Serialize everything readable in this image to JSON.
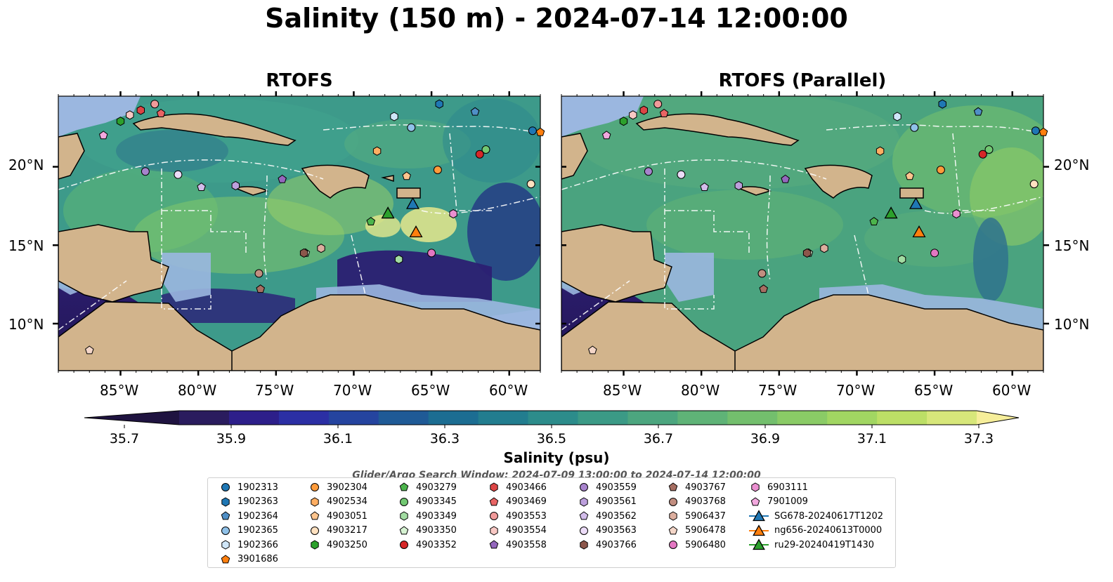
{
  "figure": {
    "title": "Salinity (150 m) - 2024-07-14 12:00:00",
    "colors": {
      "land": "#d2b48c",
      "shallow_water": "#9bb7e0",
      "coastline": "#000000",
      "eez_lines": "#ffffff"
    }
  },
  "panels": [
    {
      "title": "RTOFS",
      "model": "rtofs"
    },
    {
      "title": "RTOFS (Parallel)",
      "model": "rtofs_parallel"
    }
  ],
  "axes": {
    "lat_ticks": [
      "20°N",
      "15°N",
      "10°N"
    ],
    "lon_ticks": [
      "85°W",
      "80°W",
      "75°W",
      "70°W",
      "65°W",
      "60°W"
    ],
    "extent": {
      "lon": [
        -89,
        -58
      ],
      "lat": [
        7,
        24.5
      ]
    }
  },
  "colorbar": {
    "label": "Salinity (psu)",
    "ticks": [
      "35.7",
      "35.9",
      "36.1",
      "36.3",
      "36.5",
      "36.7",
      "36.9",
      "37.1",
      "37.3"
    ],
    "range": [
      35.7,
      37.4
    ],
    "colormap": "haline",
    "extend": "both"
  },
  "search_window": "Glider/Argo Search Window: 2024-07-09 13:00:00 to 2024-07-14 12:00:00",
  "legend": [
    {
      "label": "1902313",
      "marker": "circle",
      "color": "#1f77b4"
    },
    {
      "label": "1902363",
      "marker": "hexagon",
      "color": "#1f77b4"
    },
    {
      "label": "1902364",
      "marker": "pentagon",
      "color": "#4f8fc6"
    },
    {
      "label": "1902365",
      "marker": "circle",
      "color": "#8fc1e8"
    },
    {
      "label": "1902366",
      "marker": "hexagon",
      "color": "#cfe6f8"
    },
    {
      "label": "3901686",
      "marker": "pentagon",
      "color": "#ff7f0e"
    },
    {
      "label": "3902304",
      "marker": "circle",
      "color": "#ff9b3a"
    },
    {
      "label": "4902534",
      "marker": "hexagon",
      "color": "#ffae62"
    },
    {
      "label": "4903051",
      "marker": "pentagon",
      "color": "#ffc58e"
    },
    {
      "label": "4903217",
      "marker": "circle",
      "color": "#ffe1c0"
    },
    {
      "label": "4903250",
      "marker": "hexagon",
      "color": "#2ca02c"
    },
    {
      "label": "4903279",
      "marker": "pentagon",
      "color": "#4cb44c"
    },
    {
      "label": "4903345",
      "marker": "circle",
      "color": "#72c872"
    },
    {
      "label": "4903349",
      "marker": "hexagon",
      "color": "#a2dca2"
    },
    {
      "label": "4903350",
      "marker": "pentagon",
      "color": "#d6f2d2"
    },
    {
      "label": "4903352",
      "marker": "circle",
      "color": "#d62728"
    },
    {
      "label": "4903466",
      "marker": "hexagon",
      "color": "#dc4545"
    },
    {
      "label": "4903469",
      "marker": "pentagon",
      "color": "#e86464"
    },
    {
      "label": "4903553",
      "marker": "circle",
      "color": "#f09a9a"
    },
    {
      "label": "4903554",
      "marker": "hexagon",
      "color": "#f8c8c4"
    },
    {
      "label": "4903558",
      "marker": "pentagon",
      "color": "#9467bd"
    },
    {
      "label": "4903559",
      "marker": "circle",
      "color": "#a783cc"
    },
    {
      "label": "4903561",
      "marker": "hexagon",
      "color": "#bc9fdc"
    },
    {
      "label": "4903562",
      "marker": "pentagon",
      "color": "#d2bcea"
    },
    {
      "label": "4903563",
      "marker": "circle",
      "color": "#ecdcf8"
    },
    {
      "label": "4903766",
      "marker": "hexagon",
      "color": "#8c564b"
    },
    {
      "label": "4903767",
      "marker": "pentagon",
      "color": "#a66e62"
    },
    {
      "label": "4903768",
      "marker": "circle",
      "color": "#c28e80"
    },
    {
      "label": "5906437",
      "marker": "hexagon",
      "color": "#dcae9e"
    },
    {
      "label": "5906478",
      "marker": "pentagon",
      "color": "#f4d6c8"
    },
    {
      "label": "5906480",
      "marker": "circle",
      "color": "#e377c2"
    },
    {
      "label": "6903111",
      "marker": "hexagon",
      "color": "#ea8fd0"
    },
    {
      "label": "7901009",
      "marker": "pentagon",
      "color": "#f2a8de"
    },
    {
      "label": "SG678-20240617T1202",
      "marker": "triangle-line",
      "color": "#1f77b4"
    },
    {
      "label": "ng656-20240613T0000",
      "marker": "triangle-line",
      "color": "#ff7f0e"
    },
    {
      "label": "ru29-20240419T1430",
      "marker": "triangle-line",
      "color": "#2ca02c"
    }
  ],
  "platforms": [
    {
      "id": "1902313",
      "lon": -58.5,
      "lat": 22.3
    },
    {
      "id": "1902363",
      "lon": -64.5,
      "lat": 24.0
    },
    {
      "id": "1902364",
      "lon": -62.2,
      "lat": 23.5
    },
    {
      "id": "1902365",
      "lon": -66.3,
      "lat": 22.5
    },
    {
      "id": "1902366",
      "lon": -67.4,
      "lat": 23.2
    },
    {
      "id": "3901686",
      "lon": -58.0,
      "lat": 22.2
    },
    {
      "id": "3902304",
      "lon": -64.6,
      "lat": 19.8
    },
    {
      "id": "4902534",
      "lon": -68.5,
      "lat": 21.0
    },
    {
      "id": "4903051",
      "lon": -66.6,
      "lat": 19.4
    },
    {
      "id": "4903217",
      "lon": -58.6,
      "lat": 18.9
    },
    {
      "id": "4903250",
      "lon": -85.0,
      "lat": 22.9
    },
    {
      "id": "4903279",
      "lon": -68.9,
      "lat": 16.5
    },
    {
      "id": "4903345",
      "lon": -61.5,
      "lat": 21.1
    },
    {
      "id": "4903349",
      "lon": -67.1,
      "lat": 14.1
    },
    {
      "id": "4903350",
      "lon": -73.1,
      "lat": 14.5
    },
    {
      "id": "4903352",
      "lon": -61.9,
      "lat": 20.8
    },
    {
      "id": "4903466",
      "lon": -83.7,
      "lat": 23.6
    },
    {
      "id": "4903469",
      "lon": -82.4,
      "lat": 23.4
    },
    {
      "id": "4903553",
      "lon": -82.8,
      "lat": 24.0
    },
    {
      "id": "4903554",
      "lon": -84.4,
      "lat": 23.3
    },
    {
      "id": "4903558",
      "lon": -74.6,
      "lat": 19.2
    },
    {
      "id": "4903559",
      "lon": -83.4,
      "lat": 19.7
    },
    {
      "id": "4903561",
      "lon": -77.6,
      "lat": 18.8
    },
    {
      "id": "4903562",
      "lon": -79.8,
      "lat": 18.7
    },
    {
      "id": "4903563",
      "lon": -81.3,
      "lat": 19.5
    },
    {
      "id": "4903766",
      "lon": -73.2,
      "lat": 14.5
    },
    {
      "id": "4903767",
      "lon": -76.0,
      "lat": 12.2
    },
    {
      "id": "4903768",
      "lon": -76.1,
      "lat": 13.2
    },
    {
      "id": "5906437",
      "lon": -72.1,
      "lat": 14.8
    },
    {
      "id": "5906478",
      "lon": -87.0,
      "lat": 8.3
    },
    {
      "id": "5906480",
      "lon": -65.0,
      "lat": 14.5
    },
    {
      "id": "6903111",
      "lon": -63.6,
      "lat": 17.0
    },
    {
      "id": "7901009",
      "lon": -86.1,
      "lat": 22.0
    },
    {
      "id": "SG678-20240617T1202",
      "lon": -66.2,
      "lat": 17.6,
      "glider": true
    },
    {
      "id": "ng656-20240613T0000",
      "lon": -66.0,
      "lat": 15.8,
      "glider": true
    },
    {
      "id": "ru29-20240419T1430",
      "lon": -67.8,
      "lat": 17.0,
      "glider": true
    }
  ]
}
